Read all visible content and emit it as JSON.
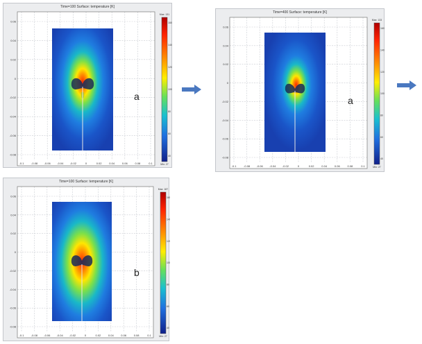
{
  "panels": [
    {
      "id": "panel-a-top-left",
      "title": "Time=100  Surface: temperature [K]",
      "label": "a",
      "colorbar_max_label": "Max: 131",
      "colorbar_min_label": "Min: 27"
    },
    {
      "id": "panel-a-top-right",
      "title": "Time=400  Surface: temperature [K]",
      "label": "a",
      "colorbar_max_label": "Max: 133",
      "colorbar_min_label": "Min: 27"
    },
    {
      "id": "panel-b-bottom-left",
      "title": "Time=100  Surface: temperature [K]",
      "label": "b",
      "colorbar_max_label": "Max: 187",
      "colorbar_min_label": "Min: 27"
    }
  ],
  "x_ticks": [
    "-0.1",
    "-0.08",
    "-0.06",
    "-0.04",
    "-0.02",
    "0",
    "0.02",
    "0.04",
    "0.06",
    "0.08",
    "0.1"
  ],
  "y_ticks": [
    "0.06",
    "0.04",
    "0.02",
    "0",
    "-0.02",
    "-0.04",
    "-0.06",
    "-0.08"
  ],
  "colorbar_ticks": [
    "160",
    "140",
    "120",
    "100",
    "80",
    "60",
    "40"
  ],
  "arrow_color": "#4a78c0"
}
